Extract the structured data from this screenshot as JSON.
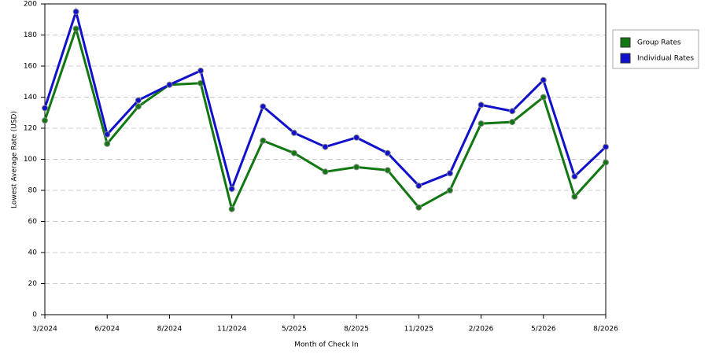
{
  "chart_data": {
    "type": "line",
    "x_label": "Month of Check In",
    "y_label": "Lowest Average Rate (USD)",
    "categories": [
      "3/2024",
      null,
      "6/2024",
      null,
      "8/2024",
      null,
      "11/2024",
      null,
      "5/2025",
      null,
      "8/2025",
      null,
      "11/2025",
      null,
      "2/2026",
      null,
      "5/2026",
      null,
      "8/2026"
    ],
    "series": [
      {
        "name": "Group Rates",
        "color": "#117711",
        "values": [
          125,
          184,
          110,
          134,
          148,
          149,
          68,
          112,
          104,
          92,
          95,
          93,
          69,
          80,
          123,
          124,
          140,
          76,
          98
        ]
      },
      {
        "name": "Individual Rates",
        "color": "#1111cc",
        "values": [
          133,
          195,
          116,
          138,
          148,
          157,
          81,
          134,
          117,
          108,
          114,
          104,
          83,
          91,
          135,
          131,
          151,
          89,
          108
        ]
      }
    ],
    "ylim": [
      0,
      200
    ],
    "yticks": [
      0,
      20,
      40,
      60,
      80,
      100,
      120,
      140,
      160,
      180,
      200
    ],
    "grid": true,
    "legend": "right"
  }
}
